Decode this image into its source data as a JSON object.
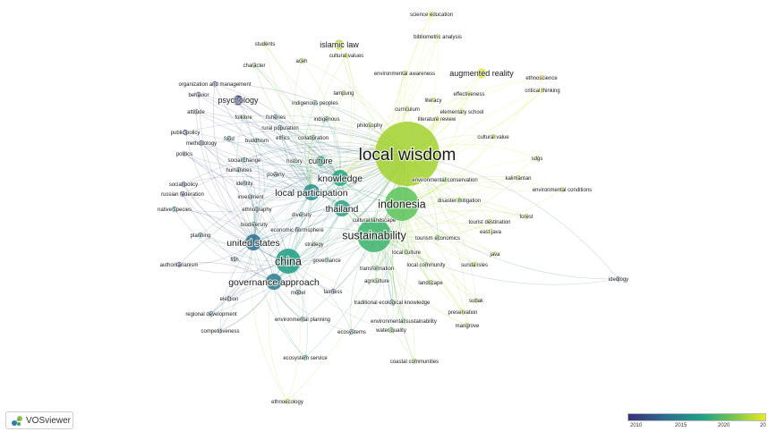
{
  "brand": {
    "name": "VOSviewer",
    "logo_icon": "vosviewer-logo-icon"
  },
  "legend": {
    "ticks": [
      "2010",
      "2015",
      "2020",
      "20"
    ],
    "colors": [
      "#3b2f78",
      "#2c6f8e",
      "#22a384",
      "#7ac74f",
      "#e9ea1f"
    ]
  },
  "nodes": [
    {
      "label": "local wisdom",
      "color": "#a2d12f",
      "size": 7,
      "year": 2021
    },
    {
      "label": "indonesia",
      "color": "#5cc35a",
      "size": 5,
      "year": 2020
    },
    {
      "label": "sustainability",
      "color": "#3bb36a",
      "size": 5,
      "year": 2019
    },
    {
      "label": "china",
      "color": "#1f9c83",
      "size": 4,
      "year": 2018
    },
    {
      "label": "knowledge",
      "color": "#26a37d",
      "size": 3,
      "year": 2018
    },
    {
      "label": "local participation",
      "color": "#2b8f8b",
      "size": 3,
      "year": 2017
    },
    {
      "label": "thailand",
      "color": "#2e9c82",
      "size": 3,
      "year": 2018
    },
    {
      "label": "united states",
      "color": "#2c6f8e",
      "size": 3,
      "year": 2016
    },
    {
      "label": "governance approach",
      "color": "#2b7e8a",
      "size": 3,
      "year": 2017
    },
    {
      "label": "culture",
      "color": "#2ea67a",
      "size": 2,
      "year": 2018
    },
    {
      "label": "psychology",
      "color": "#3f4b8a",
      "size": 2,
      "year": 2014
    },
    {
      "label": "islamic law",
      "color": "#c0d832",
      "size": 2,
      "year": 2022
    },
    {
      "label": "augmented reality",
      "color": "#dfe528",
      "size": 2,
      "year": 2023
    },
    {
      "label": "science education",
      "color": "#e6e624",
      "size": 1,
      "year": 2023
    },
    {
      "label": "bibliometric analysis",
      "color": "#dde527",
      "size": 1,
      "year": 2023
    },
    {
      "label": "ethnoscience",
      "color": "#e3e525",
      "size": 1,
      "year": 2023
    },
    {
      "label": "critical thinking",
      "color": "#dbe327",
      "size": 1,
      "year": 2023
    },
    {
      "label": "students",
      "color": "#a9d73a",
      "size": 1,
      "year": 2021
    },
    {
      "label": "aceh",
      "color": "#8fd043",
      "size": 1,
      "year": 2021
    },
    {
      "label": "cultural values",
      "color": "#b8d935",
      "size": 1,
      "year": 2022
    },
    {
      "label": "character",
      "color": "#6fc552",
      "size": 1,
      "year": 2020
    },
    {
      "label": "environmental awareness",
      "color": "#bcda34",
      "size": 1,
      "year": 2022
    },
    {
      "label": "effectiveness",
      "color": "#cfe02d",
      "size": 1,
      "year": 2022
    },
    {
      "label": "organization and management",
      "color": "#4b4490",
      "size": 1,
      "year": 2013
    },
    {
      "label": "behavior",
      "color": "#4a5892",
      "size": 1,
      "year": 2013
    },
    {
      "label": "lampung",
      "color": "#aed737",
      "size": 1,
      "year": 2021
    },
    {
      "label": "indigenous peoples",
      "color": "#37a47a",
      "size": 1,
      "year": 2018
    },
    {
      "label": "literacy",
      "color": "#c9dd30",
      "size": 1,
      "year": 2022
    },
    {
      "label": "curriculum",
      "color": "#b5d936",
      "size": 1,
      "year": 2022
    },
    {
      "label": "elementary school",
      "color": "#c3dc31",
      "size": 1,
      "year": 2022
    },
    {
      "label": "attitude",
      "color": "#4a5b94",
      "size": 1,
      "year": 2013
    },
    {
      "label": "folklore",
      "color": "#54b66a",
      "size": 1,
      "year": 2019
    },
    {
      "label": "fisheries",
      "color": "#3a8a8a",
      "size": 1,
      "year": 2016
    },
    {
      "label": "rural population",
      "color": "#3f7d8d",
      "size": 1,
      "year": 2016
    },
    {
      "label": "indigenous",
      "color": "#3a9e80",
      "size": 1,
      "year": 2018
    },
    {
      "label": "philosophy",
      "color": "#9fd33c",
      "size": 1,
      "year": 2021
    },
    {
      "label": "literature review",
      "color": "#c2db31",
      "size": 1,
      "year": 2022
    },
    {
      "label": "public policy",
      "color": "#4a5b94",
      "size": 1,
      "year": 2013
    },
    {
      "label": "methodology",
      "color": "#4d5b92",
      "size": 1,
      "year": 2013
    },
    {
      "label": "food",
      "color": "#3f8a8a",
      "size": 1,
      "year": 2016
    },
    {
      "label": "buddhism",
      "color": "#2f9c82",
      "size": 1,
      "year": 2018
    },
    {
      "label": "ethics",
      "color": "#3a9a80",
      "size": 1,
      "year": 2018
    },
    {
      "label": "collaboration",
      "color": "#3ca67a",
      "size": 1,
      "year": 2018
    },
    {
      "label": "cultural value",
      "color": "#b6d935",
      "size": 1,
      "year": 2022
    },
    {
      "label": "politics",
      "color": "#4a5b94",
      "size": 1,
      "year": 2013
    },
    {
      "label": "social change",
      "color": "#3a7f8d",
      "size": 1,
      "year": 2016
    },
    {
      "label": "history",
      "color": "#5bb765",
      "size": 1,
      "year": 2019
    },
    {
      "label": "sdgs",
      "color": "#dde528",
      "size": 1,
      "year": 2023
    },
    {
      "label": "humanities",
      "color": "#3d7f8c",
      "size": 1,
      "year": 2016
    },
    {
      "label": "poverty",
      "color": "#3c7f8c",
      "size": 1,
      "year": 2016
    },
    {
      "label": "kalimantan",
      "color": "#a3d43a",
      "size": 1,
      "year": 2021
    },
    {
      "label": "environmental conservation",
      "color": "#7fc84b",
      "size": 1,
      "year": 2020
    },
    {
      "label": "environmental conditions",
      "color": "#b9da34",
      "size": 1,
      "year": 2022
    },
    {
      "label": "social policy",
      "color": "#4a5b94",
      "size": 1,
      "year": 2013
    },
    {
      "label": "identity",
      "color": "#3f7f8c",
      "size": 1,
      "year": 2016
    },
    {
      "label": "russian federation",
      "color": "#4f4d90",
      "size": 1,
      "year": 2012
    },
    {
      "label": "investment",
      "color": "#3b6f8e",
      "size": 1,
      "year": 2015
    },
    {
      "label": "disaster mitigation",
      "color": "#7fc84b",
      "size": 1,
      "year": 2020
    },
    {
      "label": "native species",
      "color": "#3c7f8c",
      "size": 1,
      "year": 2016
    },
    {
      "label": "ethnography",
      "color": "#3f8a8a",
      "size": 1,
      "year": 2016
    },
    {
      "label": "diversity",
      "color": "#2f9c82",
      "size": 1,
      "year": 2018
    },
    {
      "label": "forest",
      "color": "#aad637",
      "size": 1,
      "year": 2021
    },
    {
      "label": "biodiversity",
      "color": "#3a8a8a",
      "size": 1,
      "year": 2016
    },
    {
      "label": "cultural landscape",
      "color": "#6cc456",
      "size": 1,
      "year": 2020
    },
    {
      "label": "tourist destination",
      "color": "#b4d936",
      "size": 1,
      "year": 2022
    },
    {
      "label": "east java",
      "color": "#c8dd30",
      "size": 1,
      "year": 2022
    },
    {
      "label": "economic normsphere",
      "color": "#3e6f8c",
      "size": 1,
      "year": 2015
    },
    {
      "label": "tourism economics",
      "color": "#5cb764",
      "size": 1,
      "year": 2019
    },
    {
      "label": "strategy",
      "color": "#63be5d",
      "size": 1,
      "year": 2019
    },
    {
      "label": "planning",
      "color": "#3f7f8c",
      "size": 1,
      "year": 2016
    },
    {
      "label": "java",
      "color": "#c1db32",
      "size": 1,
      "year": 2022
    },
    {
      "label": "local culture",
      "color": "#7cc84c",
      "size": 1,
      "year": 2020
    },
    {
      "label": "sunda isles",
      "color": "#a6d538",
      "size": 1,
      "year": 2021
    },
    {
      "label": "fish",
      "color": "#3c6f8e",
      "size": 1,
      "year": 2015
    },
    {
      "label": "governance",
      "color": "#4fb36b",
      "size": 1,
      "year": 2019
    },
    {
      "label": "authoritarianism",
      "color": "#4a4490",
      "size": 1,
      "year": 2013
    },
    {
      "label": "transformation",
      "color": "#5bb765",
      "size": 1,
      "year": 2019
    },
    {
      "label": "local community",
      "color": "#7ec84b",
      "size": 1,
      "year": 2020
    },
    {
      "label": "agriculture",
      "color": "#6cc456",
      "size": 1,
      "year": 2020
    },
    {
      "label": "landscape",
      "color": "#8ecd46",
      "size": 1,
      "year": 2021
    },
    {
      "label": "ideology",
      "color": "#3c6f8e",
      "size": 1,
      "year": 2015
    },
    {
      "label": "model",
      "color": "#3a7f8d",
      "size": 1,
      "year": 2016
    },
    {
      "label": "fairness",
      "color": "#4b5b92",
      "size": 1,
      "year": 2014
    },
    {
      "label": "traditional ecological knowledge",
      "color": "#3a9e80",
      "size": 1,
      "year": 2018
    },
    {
      "label": "election",
      "color": "#4a4b90",
      "size": 1,
      "year": 2013
    },
    {
      "label": "subak",
      "color": "#b3d836",
      "size": 1,
      "year": 2022
    },
    {
      "label": "regional development",
      "color": "#3f6f8d",
      "size": 1,
      "year": 2015
    },
    {
      "label": "preservation",
      "color": "#b6d935",
      "size": 1,
      "year": 2022
    },
    {
      "label": "environmental planning",
      "color": "#3c7f8c",
      "size": 1,
      "year": 2016
    },
    {
      "label": "environmental sustainability",
      "color": "#5db665",
      "size": 1,
      "year": 2019
    },
    {
      "label": "mangrove",
      "color": "#a9d637",
      "size": 1,
      "year": 2021
    },
    {
      "label": "competitiveness",
      "color": "#3c6f8e",
      "size": 1,
      "year": 2015
    },
    {
      "label": "ecosystems",
      "color": "#3a8a8a",
      "size": 1,
      "year": 2016
    },
    {
      "label": "water quality",
      "color": "#5cb764",
      "size": 1,
      "year": 2019
    },
    {
      "label": "ecosystem service",
      "color": "#3a9a80",
      "size": 1,
      "year": 2018
    },
    {
      "label": "coastal communities",
      "color": "#8ecd46",
      "size": 1,
      "year": 2021
    },
    {
      "label": "ethnoecology",
      "color": "#bcd934",
      "size": 1,
      "year": 2022
    }
  ]
}
